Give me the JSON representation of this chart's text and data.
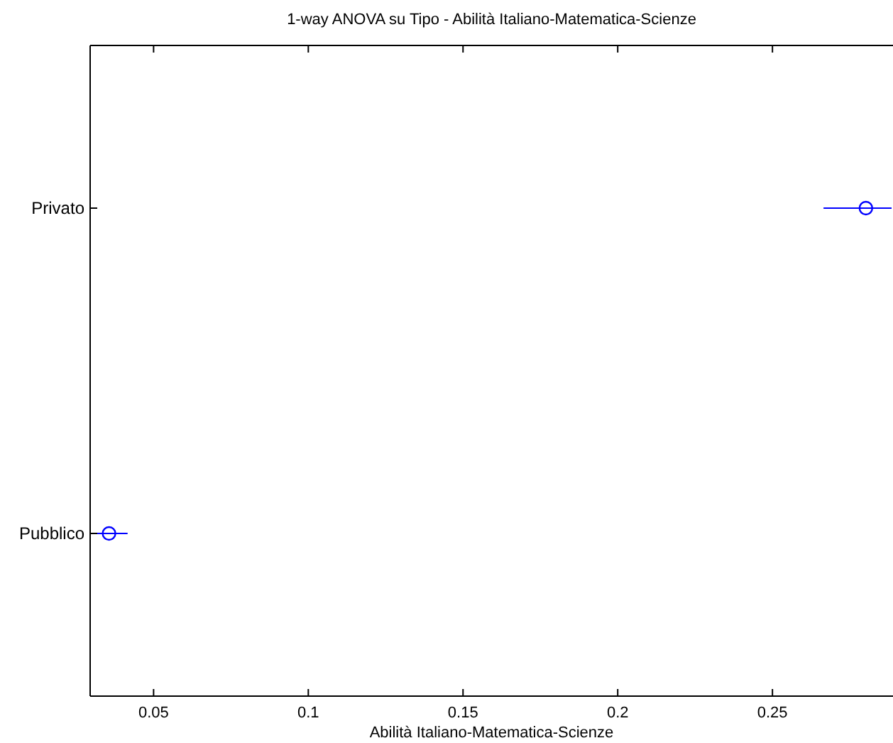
{
  "chart_data": {
    "type": "scatter",
    "orientation": "horizontal",
    "title": "1-way ANOVA su Tipo - Abilità Italiano-Matematica-Scienze",
    "xlabel": "Abilità Italiano-Matematica-Scienze",
    "categories": [
      "Privato",
      "Pubblico"
    ],
    "series": [
      {
        "color": "#0000ff",
        "values": [
          0.2802,
          0.0356
        ],
        "errors": [
          [
            0.2665,
            0.2885
          ],
          [
            0.0296,
            0.0416
          ]
        ]
      }
    ],
    "xlim": [
      0.0295,
      0.2885
    ],
    "xticks": [
      0.05,
      0.1,
      0.15,
      0.2,
      0.25
    ],
    "marker": "circle",
    "grid": false
  }
}
